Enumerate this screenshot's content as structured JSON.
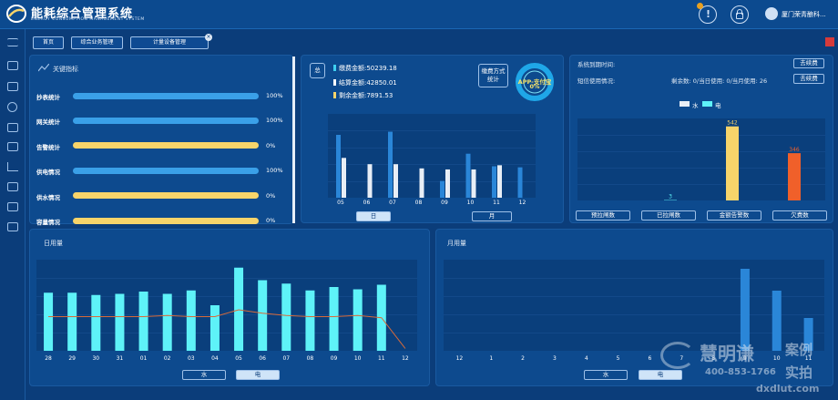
{
  "header": {
    "title": "能耗综合管理系统",
    "subtitle": "ENERGY CONSUMPTION MANAGEMENT SYSTEM",
    "user_name": "厦门荣青酿科...",
    "notif_badge": "1"
  },
  "tabs": [
    {
      "label": "首页"
    },
    {
      "label": "综合业务管理"
    },
    {
      "label": "计量设备管理"
    }
  ],
  "tab_close_glyph": "×",
  "kpi": {
    "title": "关键指标",
    "items": [
      {
        "label": "抄表统计",
        "value": "100%",
        "fraction": 1.0,
        "color": "#3aa0e8"
      },
      {
        "label": "网关统计",
        "value": "100%",
        "fraction": 1.0,
        "color": "#3aa0e8"
      },
      {
        "label": "告警统计",
        "value": "0%",
        "fraction": 0.0,
        "color": "#f7d46a"
      },
      {
        "label": "供电情况",
        "value": "100%",
        "fraction": 1.0,
        "color": "#3aa0e8"
      },
      {
        "label": "供水情况",
        "value": "0%",
        "fraction": 0.0,
        "color": "#f7d46a"
      },
      {
        "label": "容量情况",
        "value": "0%",
        "fraction": 0.0,
        "color": "#f7d46a"
      }
    ]
  },
  "fees": {
    "total_badge": "总",
    "rows": [
      {
        "text": "缴费金额:50239.18",
        "color": "#3fd0f0"
      },
      {
        "text": "结算金额:42850.01",
        "color": "#ffffff"
      },
      {
        "text": "剩余金额:7891.53",
        "color": "#f7d46a"
      }
    ],
    "method_btn": "缴费方式统计",
    "donut_label": "APP-支付宝",
    "donut_value": "0%",
    "day_btn": "日",
    "month_btn": "月"
  },
  "system": {
    "expiry_label": "系统到期时间:",
    "sms_label": "短信使用情况:",
    "sms_detail": "剩余数: 0/当日使用: 0/当月使用: 26",
    "goto_btn": "去续费",
    "legend_water": "水",
    "legend_power": "电",
    "buttons": [
      "预拉闸数",
      "已拉闸数",
      "金额告警数",
      "欠费数"
    ]
  },
  "daily": {
    "title": "日用量",
    "water_btn": "水",
    "power_btn": "电"
  },
  "monthly": {
    "title": "月用量",
    "water_btn": "水",
    "power_btn": "电"
  },
  "watermark": {
    "brand": "慧明谦",
    "tag1": "案例",
    "tag2": "实拍",
    "phone": "400-853-1766",
    "site": "dxdlut.com"
  },
  "colors": {
    "cyan": "#5ef2f8",
    "blue": "#2a7fd0",
    "yellow": "#f7d46a",
    "orange": "#f0602a",
    "white": "#e8eef6"
  },
  "chart_data": [
    {
      "type": "bar",
      "categories": [
        "05",
        "06",
        "07",
        "08",
        "09",
        "10",
        "11",
        "12"
      ],
      "series": [
        {
          "values": [
            60,
            0,
            63,
            0,
            16,
            42,
            30,
            29
          ]
        },
        {
          "values": [
            38,
            32,
            32,
            28,
            27,
            27,
            31,
            0
          ]
        }
      ]
    },
    {
      "type": "bar",
      "categories": [
        "预拉闸数",
        "已拉闸数",
        "金额告警数",
        "欠费数"
      ],
      "series": [
        {
          "name": "水",
          "values": [
            0,
            0,
            0,
            0
          ]
        },
        {
          "name": "电",
          "values": [
            0,
            3,
            542,
            346
          ]
        }
      ],
      "labels": [
        "3",
        "542",
        "346"
      ]
    },
    {
      "type": "bar",
      "title": "日用量",
      "categories": [
        "28",
        "29",
        "30",
        "31",
        "01",
        "02",
        "03",
        "04",
        "05",
        "06",
        "07",
        "08",
        "09",
        "10",
        "11",
        "12"
      ],
      "values": [
        51,
        51,
        49,
        50,
        52,
        50,
        53,
        40,
        73,
        62,
        59,
        53,
        56,
        54,
        58,
        0
      ],
      "line": [
        30,
        30,
        30,
        30,
        30,
        31,
        30,
        30,
        36,
        33,
        31,
        30,
        30,
        31,
        29,
        2
      ]
    },
    {
      "type": "bar",
      "title": "月用量",
      "categories": [
        "12",
        "1",
        "2",
        "3",
        "4",
        "5",
        "6",
        "7",
        "8",
        "9",
        "10",
        "11"
      ],
      "values": [
        0,
        0,
        0,
        0,
        0,
        0,
        0,
        0,
        0,
        90,
        66,
        36
      ]
    }
  ]
}
